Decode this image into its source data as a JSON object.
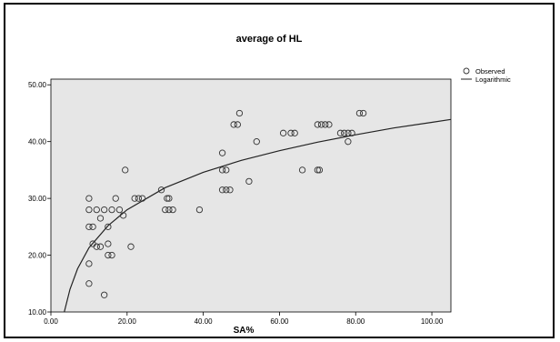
{
  "chart_data": {
    "type": "scatter",
    "title": "average of HL",
    "xlabel": "SA%",
    "ylabel": "",
    "xlim": [
      0,
      105
    ],
    "ylim": [
      10,
      51
    ],
    "x_ticks": [
      "0.00",
      "20.00",
      "40.00",
      "60.00",
      "80.00",
      "100.00"
    ],
    "x_tick_values": [
      0,
      20,
      40,
      60,
      80,
      100
    ],
    "y_ticks": [
      "10.00",
      "20.00",
      "30.00",
      "40.00",
      "50.00"
    ],
    "y_tick_values": [
      10,
      20,
      30,
      40,
      50
    ],
    "grid": false,
    "legend_position": "top-right",
    "legend": [
      "Observed",
      "Logarithmic"
    ],
    "colors": {
      "plot_bg": "#e6e6e6",
      "marker": "#333333",
      "line": "#222222"
    },
    "series": [
      {
        "name": "Observed",
        "kind": "points",
        "points": [
          [
            10,
            30
          ],
          [
            10,
            28
          ],
          [
            10,
            25
          ],
          [
            10,
            18.5
          ],
          [
            10,
            15
          ],
          [
            11,
            25
          ],
          [
            11,
            22
          ],
          [
            12,
            21.5
          ],
          [
            13,
            21.5
          ],
          [
            12,
            28
          ],
          [
            14,
            28
          ],
          [
            13,
            26.5
          ],
          [
            14,
            13
          ],
          [
            15,
            25
          ],
          [
            15,
            22
          ],
          [
            15,
            20
          ],
          [
            16,
            20
          ],
          [
            16,
            28
          ],
          [
            17,
            30
          ],
          [
            18,
            28
          ],
          [
            19,
            27
          ],
          [
            19.5,
            35
          ],
          [
            21,
            21.5
          ],
          [
            22,
            30
          ],
          [
            23,
            30
          ],
          [
            24,
            30
          ],
          [
            29,
            31.5
          ],
          [
            30,
            28
          ],
          [
            31,
            28
          ],
          [
            30.5,
            30
          ],
          [
            31,
            30
          ],
          [
            32,
            28
          ],
          [
            39,
            28
          ],
          [
            45,
            38
          ],
          [
            45,
            35
          ],
          [
            46,
            35
          ],
          [
            45,
            31.5
          ],
          [
            46,
            31.5
          ],
          [
            47,
            31.5
          ],
          [
            48,
            43
          ],
          [
            49,
            43
          ],
          [
            49.5,
            45
          ],
          [
            52,
            33
          ],
          [
            54,
            40
          ],
          [
            61,
            41.5
          ],
          [
            63,
            41.5
          ],
          [
            64,
            41.5
          ],
          [
            66,
            35
          ],
          [
            70,
            35
          ],
          [
            70.5,
            35
          ],
          [
            70,
            43
          ],
          [
            71,
            43
          ],
          [
            72,
            43
          ],
          [
            73,
            43
          ],
          [
            76,
            41.5
          ],
          [
            77,
            41.5
          ],
          [
            78,
            41.5
          ],
          [
            79,
            41.5
          ],
          [
            78,
            40
          ],
          [
            81,
            45
          ],
          [
            82,
            45
          ]
        ]
      },
      {
        "name": "Logarithmic",
        "kind": "line",
        "curve_points": [
          [
            3.5,
            10
          ],
          [
            5,
            14
          ],
          [
            7,
            17.6
          ],
          [
            10,
            21.3
          ],
          [
            15,
            25.2
          ],
          [
            20,
            28
          ],
          [
            30,
            31.9
          ],
          [
            40,
            34.6
          ],
          [
            50,
            36.7
          ],
          [
            60,
            38.4
          ],
          [
            70,
            39.9
          ],
          [
            80,
            41.2
          ],
          [
            90,
            42.4
          ],
          [
            100,
            43.4
          ],
          [
            105,
            43.9
          ]
        ]
      }
    ]
  }
}
